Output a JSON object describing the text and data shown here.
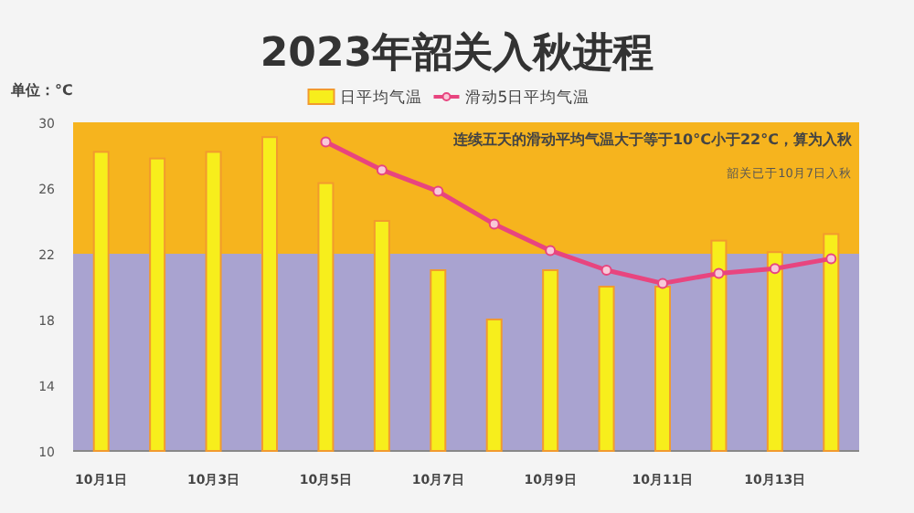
{
  "chart_data": {
    "type": "bar",
    "title": "2023年韶关入秋进程",
    "ylabel": "单位：°C",
    "categories": [
      "10月1日",
      null,
      "10月3日",
      null,
      "10月5日",
      null,
      "10月7日",
      null,
      "10月9日",
      null,
      "10月11日",
      null,
      "10月13日",
      null
    ],
    "series": [
      {
        "name": "日平均气温",
        "color": "#f7ee1c",
        "values": [
          28.2,
          27.8,
          28.2,
          29.1,
          26.3,
          24,
          21,
          18,
          21,
          20,
          20,
          22.8,
          22.1,
          23.2
        ]
      },
      {
        "name": "滑动5日平均气温",
        "type": "line",
        "color": "#e8457f",
        "marker": "circle",
        "values": [
          null,
          null,
          null,
          null,
          28.8,
          27.1,
          25.8,
          23.8,
          22.2,
          21.0,
          20.2,
          20.8,
          21.1,
          21.7
        ]
      }
    ],
    "ylim": [
      10,
      30
    ],
    "yticks": [
      10,
      14,
      18,
      22,
      26,
      30
    ],
    "bands": [
      {
        "axis": "y",
        "from": 22,
        "to": 30,
        "color": "#f6b41e"
      },
      {
        "axis": "y",
        "from": 10,
        "to": 22,
        "color": "#a9a3d0"
      }
    ],
    "annotations": [
      "连续五天的滑动平均气温大于等于10°C小于22°C，算为入秋",
      "韶关已于10月7日入秋"
    ],
    "legend": "top",
    "grid": false
  }
}
